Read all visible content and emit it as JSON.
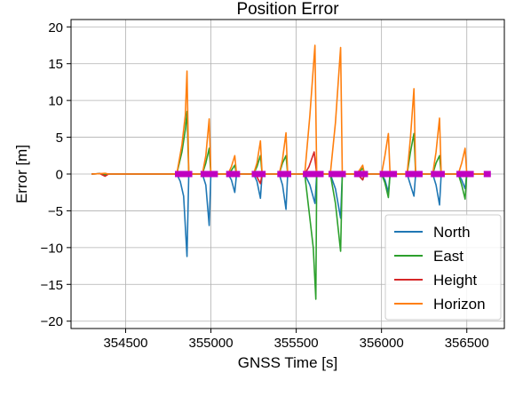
{
  "chart_data": {
    "type": "line",
    "title": "Position Error",
    "xlabel": "GNSS Time [s]",
    "ylabel": "Error [m]",
    "xlim": [
      354180,
      356720
    ],
    "ylim": [
      -21,
      21
    ],
    "xticks": [
      354500,
      355000,
      355500,
      356000,
      356500
    ],
    "yticks": [
      -20,
      -15,
      -10,
      -5,
      0,
      5,
      10,
      15,
      20
    ],
    "grid": true,
    "legend_position": "lower right",
    "series": [
      {
        "name": "North",
        "color": "#1f77b4",
        "x": [
          354300,
          354350,
          354380,
          354400,
          354800,
          354820,
          354840,
          354860,
          354870,
          354950,
          354970,
          354990,
          355000,
          355100,
          355120,
          355140,
          355150,
          355250,
          355270,
          355290,
          355300,
          355400,
          355420,
          355440,
          355450,
          355550,
          355580,
          355610,
          355620,
          355700,
          355730,
          355760,
          355770,
          355850,
          355870,
          355890,
          355900,
          356000,
          356020,
          356040,
          356050,
          356150,
          356170,
          356190,
          356200,
          356300,
          356320,
          356340,
          356350,
          356450,
          356470,
          356490,
          356500,
          356620
        ],
        "y": [
          0,
          0.05,
          -0.1,
          0,
          0,
          -1.0,
          -3.0,
          -11.2,
          0,
          0,
          -1.5,
          -7.0,
          0,
          0,
          -0.8,
          -2.5,
          0,
          0,
          -1.0,
          -3.3,
          0,
          0,
          -1.5,
          -4.8,
          0,
          0,
          -1.5,
          -4.0,
          0,
          0,
          -2.0,
          -6.0,
          0,
          0,
          -0.3,
          -0.8,
          0,
          0,
          -0.8,
          -2.5,
          0,
          0,
          -1.5,
          -3.0,
          0,
          0,
          -1.5,
          -4.2,
          0,
          0,
          -0.8,
          -2.0,
          0,
          0
        ]
      },
      {
        "name": "East",
        "color": "#2ca02c",
        "x": [
          354300,
          354350,
          354380,
          354400,
          354800,
          354830,
          354850,
          354860,
          354870,
          354950,
          354970,
          354990,
          355000,
          355100,
          355120,
          355140,
          355150,
          355250,
          355270,
          355290,
          355300,
          355400,
          355420,
          355440,
          355450,
          355550,
          355575,
          355600,
          355615,
          355620,
          355700,
          355730,
          355760,
          355770,
          355850,
          355870,
          355890,
          355900,
          356000,
          356020,
          356040,
          356050,
          356150,
          356170,
          356190,
          356200,
          356300,
          356320,
          356340,
          356350,
          356450,
          356470,
          356490,
          356500,
          356620
        ],
        "y": [
          0,
          0.05,
          -0.1,
          0,
          0,
          3.0,
          6.0,
          8.5,
          0,
          0,
          1.5,
          3.5,
          0,
          0,
          0.5,
          1.2,
          0,
          0,
          1.0,
          2.5,
          0,
          0,
          1.5,
          2.5,
          0,
          0,
          -5.0,
          -10.0,
          -17.0,
          0,
          0,
          -4.0,
          -10.5,
          0,
          0,
          0.3,
          0.8,
          0,
          0,
          -1.2,
          -3.2,
          0,
          0,
          3.0,
          5.5,
          0,
          0,
          1.5,
          2.5,
          0,
          0,
          -1.5,
          -3.4,
          0,
          0
        ]
      },
      {
        "name": "Height",
        "color": "#d62728",
        "x": [
          354300,
          354350,
          354380,
          354400,
          354800,
          354830,
          354860,
          354870,
          354950,
          354970,
          354990,
          355000,
          355100,
          355150,
          355250,
          355270,
          355290,
          355300,
          355400,
          355450,
          355550,
          355575,
          355605,
          355620,
          355700,
          355770,
          355850,
          355870,
          355890,
          355900,
          356000,
          356050,
          356150,
          356200,
          356300,
          356350,
          356450,
          356500,
          356620
        ],
        "y": [
          0,
          0.05,
          -0.3,
          0,
          0,
          0.2,
          0.3,
          0,
          0,
          -0.1,
          -0.3,
          0,
          0,
          0,
          0,
          -0.4,
          -1.3,
          0,
          0,
          0,
          0,
          1.0,
          3.0,
          0,
          0,
          0,
          0,
          -0.3,
          -0.8,
          0,
          0,
          0,
          0,
          0,
          0,
          0,
          0,
          0,
          0
        ]
      },
      {
        "name": "Horizon",
        "color": "#ff7f0e",
        "x": [
          354300,
          354350,
          354380,
          354400,
          354800,
          354830,
          354850,
          354860,
          354870,
          354950,
          354970,
          354990,
          355000,
          355100,
          355120,
          355140,
          355150,
          355250,
          355270,
          355290,
          355300,
          355400,
          355420,
          355440,
          355450,
          355550,
          355580,
          355610,
          355620,
          355700,
          355730,
          355760,
          355770,
          355850,
          355870,
          355890,
          355900,
          356000,
          356020,
          356040,
          356050,
          356150,
          356170,
          356190,
          356200,
          356300,
          356320,
          356340,
          356350,
          356450,
          356470,
          356490,
          356500,
          356620
        ],
        "y": [
          0,
          0.05,
          0.1,
          0,
          0,
          4.0,
          8.0,
          14.0,
          0,
          0,
          2.5,
          7.5,
          0,
          0,
          1.0,
          2.5,
          0,
          0,
          1.5,
          4.5,
          0,
          0,
          2.0,
          5.6,
          0,
          0,
          8.0,
          17.5,
          0,
          0,
          7.0,
          17.2,
          0,
          0,
          0.5,
          1.2,
          0,
          0,
          2.5,
          5.5,
          0,
          0,
          5.0,
          11.6,
          0,
          0,
          3.0,
          7.6,
          0,
          0,
          1.5,
          3.5,
          0,
          0
        ]
      }
    ],
    "markers": {
      "color": "#c000c0",
      "x": [
        354810,
        354830,
        354850,
        354870,
        354960,
        354980,
        355000,
        355020,
        355110,
        355130,
        355150,
        355260,
        355280,
        355300,
        355410,
        355430,
        355450,
        355560,
        355580,
        355600,
        355620,
        355640,
        355710,
        355730,
        355750,
        355770,
        355860,
        355880,
        355900,
        356010,
        356030,
        356050,
        356070,
        356160,
        356180,
        356200,
        356220,
        356310,
        356330,
        356350,
        356460,
        356480,
        356500,
        356520,
        356620
      ],
      "y": 0
    }
  }
}
